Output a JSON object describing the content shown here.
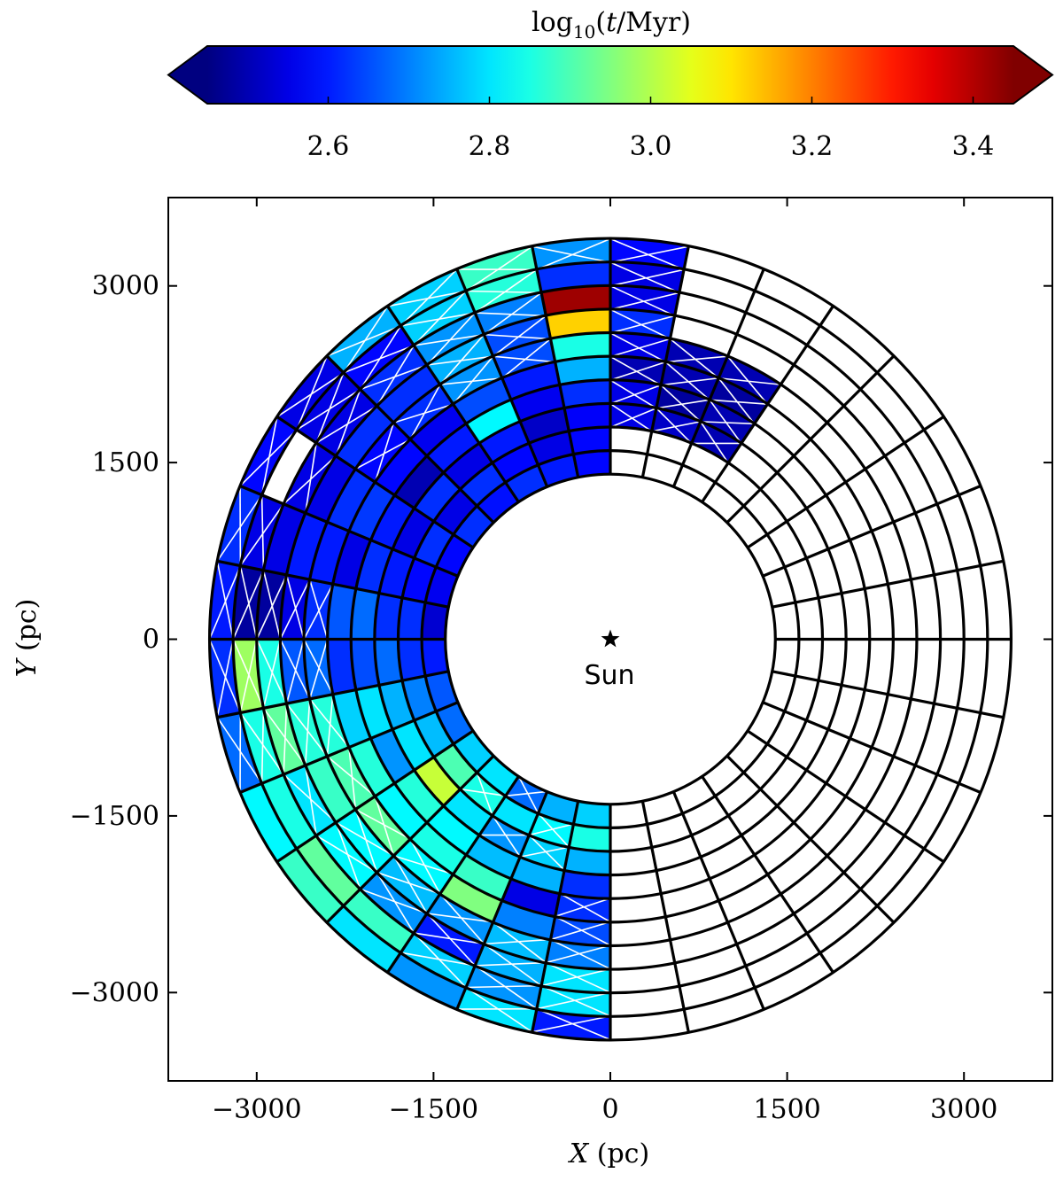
{
  "chart_data": {
    "type": "heatmap",
    "projection": "polar annulus grid around the Sun",
    "xlabel": "X (pc)",
    "ylabel": "Y (pc)",
    "xlim": [
      -3750,
      3750
    ],
    "ylim": [
      -3750,
      3750
    ],
    "xticks": [
      -3000,
      -1500,
      0,
      1500,
      3000
    ],
    "yticks": [
      -3000,
      -1500,
      0,
      1500,
      3000
    ],
    "xtick_labels": [
      "−3000",
      "−1500",
      "0",
      "1500",
      "3000"
    ],
    "ytick_labels": [
      "−3000",
      "−1500",
      "0",
      "1500",
      "3000"
    ],
    "grid": false,
    "sun_label": "Sun",
    "sun_position": [
      0,
      0
    ],
    "rings_pc": [
      1400,
      1600,
      1800,
      2000,
      2200,
      2400,
      2600,
      2800,
      3000,
      3200,
      3400
    ],
    "sector_width_deg": 11.25,
    "colorbar": {
      "title_parts": {
        "log": "log",
        "sub": "10",
        "open": "(",
        "var": "t",
        "rest": "/Myr)"
      },
      "colormap": "jet",
      "range": [
        2.45,
        3.45
      ],
      "extend": "both",
      "position": "top",
      "ticks": [
        2.6,
        2.8,
        3.0,
        3.2,
        3.4
      ],
      "tick_labels": [
        "2.6",
        "2.8",
        "3.0",
        "3.2",
        "3.4"
      ]
    },
    "cells_note": "[ring_index (0 = innermost, 1400-1600 pc), sector_index (0 starts at +X axis, counter-clockwise, 11.25 deg each), log10(t/Myr), hatched (1 = white X overlay)]",
    "cells": [
      [
        0,
        8,
        2.58,
        0
      ],
      [
        0,
        9,
        2.6,
        0
      ],
      [
        0,
        10,
        2.62,
        0
      ],
      [
        0,
        11,
        2.59,
        0
      ],
      [
        0,
        12,
        2.62,
        0
      ],
      [
        0,
        13,
        2.58,
        0
      ],
      [
        0,
        14,
        2.56,
        0
      ],
      [
        0,
        15,
        2.53,
        0
      ],
      [
        0,
        16,
        2.6,
        0
      ],
      [
        0,
        17,
        2.66,
        0
      ],
      [
        0,
        18,
        2.68,
        0
      ],
      [
        0,
        19,
        2.78,
        0
      ],
      [
        0,
        20,
        2.8,
        0
      ],
      [
        0,
        21,
        2.68,
        1
      ],
      [
        0,
        22,
        2.75,
        0
      ],
      [
        0,
        23,
        2.78,
        0
      ],
      [
        1,
        8,
        2.58,
        0
      ],
      [
        1,
        9,
        2.55,
        0
      ],
      [
        1,
        10,
        2.58,
        0
      ],
      [
        1,
        11,
        2.62,
        0
      ],
      [
        1,
        12,
        2.55,
        0
      ],
      [
        1,
        13,
        2.62,
        0
      ],
      [
        1,
        14,
        2.58,
        0
      ],
      [
        1,
        15,
        2.62,
        0
      ],
      [
        1,
        16,
        2.62,
        0
      ],
      [
        1,
        17,
        2.7,
        0
      ],
      [
        1,
        18,
        2.76,
        0
      ],
      [
        1,
        19,
        2.9,
        0
      ],
      [
        1,
        20,
        2.85,
        1
      ],
      [
        1,
        21,
        2.8,
        0
      ],
      [
        1,
        22,
        2.82,
        1
      ],
      [
        1,
        23,
        2.85,
        0
      ],
      [
        2,
        5,
        2.5,
        1
      ],
      [
        2,
        6,
        2.52,
        1
      ],
      [
        2,
        7,
        2.55,
        1
      ],
      [
        2,
        8,
        2.57,
        0
      ],
      [
        2,
        9,
        2.52,
        0
      ],
      [
        2,
        10,
        2.6,
        0
      ],
      [
        2,
        11,
        2.55,
        0
      ],
      [
        2,
        12,
        2.62,
        0
      ],
      [
        2,
        13,
        2.55,
        0
      ],
      [
        2,
        14,
        2.6,
        0
      ],
      [
        2,
        15,
        2.62,
        0
      ],
      [
        2,
        16,
        2.68,
        0
      ],
      [
        2,
        17,
        2.75,
        0
      ],
      [
        2,
        18,
        2.8,
        0
      ],
      [
        2,
        19,
        3.02,
        0
      ],
      [
        2,
        20,
        2.8,
        0
      ],
      [
        2,
        21,
        2.72,
        1
      ],
      [
        2,
        22,
        2.78,
        1
      ],
      [
        2,
        23,
        2.75,
        0
      ],
      [
        3,
        5,
        2.5,
        1
      ],
      [
        3,
        6,
        2.48,
        1
      ],
      [
        3,
        7,
        2.55,
        1
      ],
      [
        3,
        8,
        2.62,
        0
      ],
      [
        3,
        9,
        2.56,
        0
      ],
      [
        3,
        10,
        2.82,
        0
      ],
      [
        3,
        11,
        2.6,
        0
      ],
      [
        3,
        12,
        2.5,
        0
      ],
      [
        3,
        13,
        2.6,
        0
      ],
      [
        3,
        14,
        2.62,
        0
      ],
      [
        3,
        15,
        2.68,
        0
      ],
      [
        3,
        16,
        2.65,
        0
      ],
      [
        3,
        17,
        2.8,
        0
      ],
      [
        3,
        18,
        2.72,
        0
      ],
      [
        3,
        19,
        2.86,
        0
      ],
      [
        3,
        20,
        2.82,
        0
      ],
      [
        3,
        21,
        2.76,
        0
      ],
      [
        3,
        22,
        2.75,
        0
      ],
      [
        3,
        23,
        2.62,
        0
      ],
      [
        4,
        5,
        2.48,
        1
      ],
      [
        4,
        6,
        2.5,
        1
      ],
      [
        4,
        7,
        2.5,
        1
      ],
      [
        4,
        8,
        2.75,
        0
      ],
      [
        4,
        9,
        2.6,
        0
      ],
      [
        4,
        10,
        2.65,
        0
      ],
      [
        4,
        11,
        2.56,
        0
      ],
      [
        4,
        12,
        2.58,
        0
      ],
      [
        4,
        13,
        2.63,
        0
      ],
      [
        4,
        14,
        2.55,
        0
      ],
      [
        4,
        15,
        2.66,
        0
      ],
      [
        4,
        16,
        2.62,
        0
      ],
      [
        4,
        17,
        2.78,
        0
      ],
      [
        4,
        18,
        2.86,
        0
      ],
      [
        4,
        19,
        2.82,
        0
      ],
      [
        4,
        20,
        2.85,
        0
      ],
      [
        4,
        21,
        2.88,
        0
      ],
      [
        4,
        22,
        2.55,
        0
      ],
      [
        4,
        23,
        2.62,
        1
      ],
      [
        5,
        5,
        2.5,
        1
      ],
      [
        5,
        6,
        2.5,
        1
      ],
      [
        5,
        7,
        2.55,
        1
      ],
      [
        5,
        8,
        2.85,
        0
      ],
      [
        5,
        9,
        2.65,
        1
      ],
      [
        5,
        10,
        2.72,
        1
      ],
      [
        5,
        11,
        2.62,
        1
      ],
      [
        5,
        12,
        2.58,
        1
      ],
      [
        5,
        13,
        2.62,
        0
      ],
      [
        5,
        14,
        2.6,
        0
      ],
      [
        5,
        15,
        2.62,
        1
      ],
      [
        5,
        16,
        2.68,
        1
      ],
      [
        5,
        17,
        2.86,
        1
      ],
      [
        5,
        18,
        2.9,
        1
      ],
      [
        5,
        19,
        2.92,
        1
      ],
      [
        5,
        20,
        2.82,
        1
      ],
      [
        5,
        21,
        2.95,
        0
      ],
      [
        5,
        22,
        2.7,
        0
      ],
      [
        5,
        23,
        2.65,
        1
      ],
      [
        6,
        7,
        2.62,
        1
      ],
      [
        6,
        8,
        3.12,
        0
      ],
      [
        6,
        9,
        2.65,
        1
      ],
      [
        6,
        10,
        2.75,
        1
      ],
      [
        6,
        11,
        2.62,
        0
      ],
      [
        6,
        12,
        2.62,
        0
      ],
      [
        6,
        13,
        2.55,
        0
      ],
      [
        6,
        14,
        2.6,
        0
      ],
      [
        6,
        15,
        2.55,
        1
      ],
      [
        6,
        16,
        2.66,
        1
      ],
      [
        6,
        17,
        2.86,
        1
      ],
      [
        6,
        18,
        2.88,
        0
      ],
      [
        6,
        19,
        2.82,
        1
      ],
      [
        6,
        20,
        2.76,
        1
      ],
      [
        6,
        21,
        2.72,
        1
      ],
      [
        6,
        22,
        2.76,
        1
      ],
      [
        6,
        23,
        2.7,
        1
      ],
      [
        7,
        7,
        2.55,
        1
      ],
      [
        7,
        8,
        3.42,
        0
      ],
      [
        7,
        9,
        2.7,
        1
      ],
      [
        7,
        10,
        2.72,
        1
      ],
      [
        7,
        11,
        2.62,
        1
      ],
      [
        7,
        12,
        2.55,
        1
      ],
      [
        7,
        13,
        2.55,
        1
      ],
      [
        7,
        14,
        2.55,
        0
      ],
      [
        7,
        15,
        2.48,
        1
      ],
      [
        7,
        16,
        2.85,
        1
      ],
      [
        7,
        17,
        2.92,
        1
      ],
      [
        7,
        18,
        2.8,
        1
      ],
      [
        7,
        19,
        2.82,
        1
      ],
      [
        7,
        20,
        2.72,
        1
      ],
      [
        7,
        21,
        2.6,
        1
      ],
      [
        7,
        22,
        2.75,
        1
      ],
      [
        7,
        23,
        2.8,
        1
      ],
      [
        8,
        7,
        2.55,
        1
      ],
      [
        8,
        8,
        2.62,
        0
      ],
      [
        8,
        9,
        2.86,
        1
      ],
      [
        8,
        10,
        2.78,
        1
      ],
      [
        8,
        11,
        2.58,
        1
      ],
      [
        8,
        12,
        2.55,
        1
      ],
      [
        8,
        14,
        2.55,
        1
      ],
      [
        8,
        15,
        2.48,
        1
      ],
      [
        8,
        16,
        2.98,
        1
      ],
      [
        8,
        17,
        2.85,
        1
      ],
      [
        8,
        18,
        2.85,
        0
      ],
      [
        8,
        19,
        2.92,
        0
      ],
      [
        8,
        20,
        2.88,
        0
      ],
      [
        8,
        21,
        2.78,
        1
      ],
      [
        8,
        22,
        2.72,
        1
      ],
      [
        8,
        23,
        2.8,
        1
      ],
      [
        9,
        7,
        2.58,
        1
      ],
      [
        9,
        8,
        2.72,
        1
      ],
      [
        9,
        9,
        2.88,
        1
      ],
      [
        9,
        10,
        2.78,
        1
      ],
      [
        9,
        11,
        2.75,
        1
      ],
      [
        9,
        12,
        2.55,
        1
      ],
      [
        9,
        13,
        2.58,
        1
      ],
      [
        9,
        14,
        2.62,
        1
      ],
      [
        9,
        15,
        2.6,
        1
      ],
      [
        9,
        16,
        2.62,
        1
      ],
      [
        9,
        17,
        2.68,
        1
      ],
      [
        9,
        18,
        2.82,
        0
      ],
      [
        9,
        19,
        2.88,
        0
      ],
      [
        9,
        20,
        2.8,
        0
      ],
      [
        9,
        21,
        2.72,
        0
      ],
      [
        9,
        22,
        2.8,
        1
      ],
      [
        9,
        23,
        2.6,
        1
      ]
    ]
  }
}
